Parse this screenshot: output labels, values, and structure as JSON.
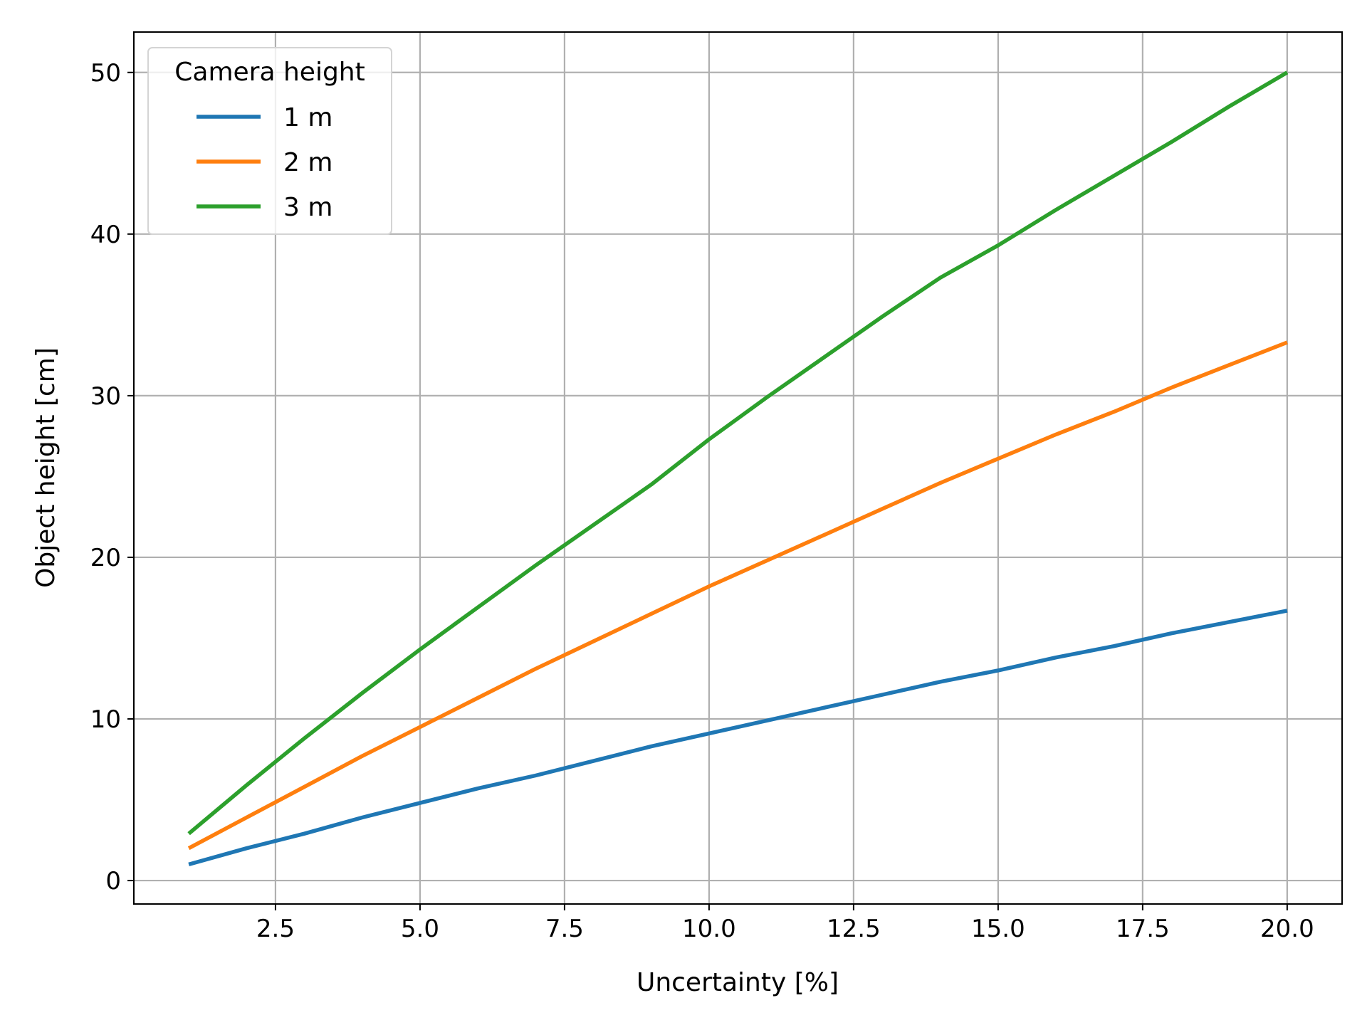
{
  "chart_data": {
    "type": "line",
    "title": "",
    "xlabel": "Uncertainty [%]",
    "ylabel": "Object height [cm]",
    "xlim": [
      0.05,
      20.95
    ],
    "ylim": [
      -1.45,
      52.5
    ],
    "xticks": [
      2.5,
      5.0,
      7.5,
      10.0,
      12.5,
      15.0,
      17.5,
      20.0
    ],
    "xtick_labels": [
      "2.5",
      "5.0",
      "7.5",
      "10.0",
      "12.5",
      "15.0",
      "17.5",
      "20.0"
    ],
    "yticks": [
      0,
      10,
      20,
      30,
      40,
      50
    ],
    "ytick_labels": [
      "0",
      "10",
      "20",
      "30",
      "40",
      "50"
    ],
    "grid": true,
    "legend": {
      "title": "Camera height",
      "position": "top-left"
    },
    "x": [
      1,
      2,
      3,
      4,
      5,
      6,
      7,
      8,
      9,
      10,
      11,
      12,
      13,
      14,
      15,
      16,
      17,
      18,
      19,
      20
    ],
    "series": [
      {
        "name": "1 m",
        "color": "#1f77b4",
        "values": [
          1.0,
          2.0,
          2.9,
          3.9,
          4.8,
          5.7,
          6.5,
          7.4,
          8.3,
          9.1,
          9.9,
          10.7,
          11.5,
          12.3,
          13.0,
          13.8,
          14.5,
          15.3,
          16.0,
          16.7
        ]
      },
      {
        "name": "2 m",
        "color": "#ff7f0e",
        "values": [
          2.0,
          3.9,
          5.8,
          7.7,
          9.5,
          11.3,
          13.1,
          14.8,
          16.5,
          18.2,
          19.8,
          21.4,
          23.0,
          24.6,
          26.1,
          27.6,
          29.0,
          30.5,
          31.9,
          33.3
        ]
      },
      {
        "name": "3 m",
        "color": "#2ca02c",
        "values": [
          2.9,
          5.9,
          8.8,
          11.6,
          14.3,
          16.9,
          19.5,
          22.0,
          24.5,
          27.3,
          29.9,
          32.4,
          34.9,
          37.3,
          39.3,
          41.5,
          43.6,
          45.7,
          47.9,
          50.0
        ]
      }
    ]
  }
}
